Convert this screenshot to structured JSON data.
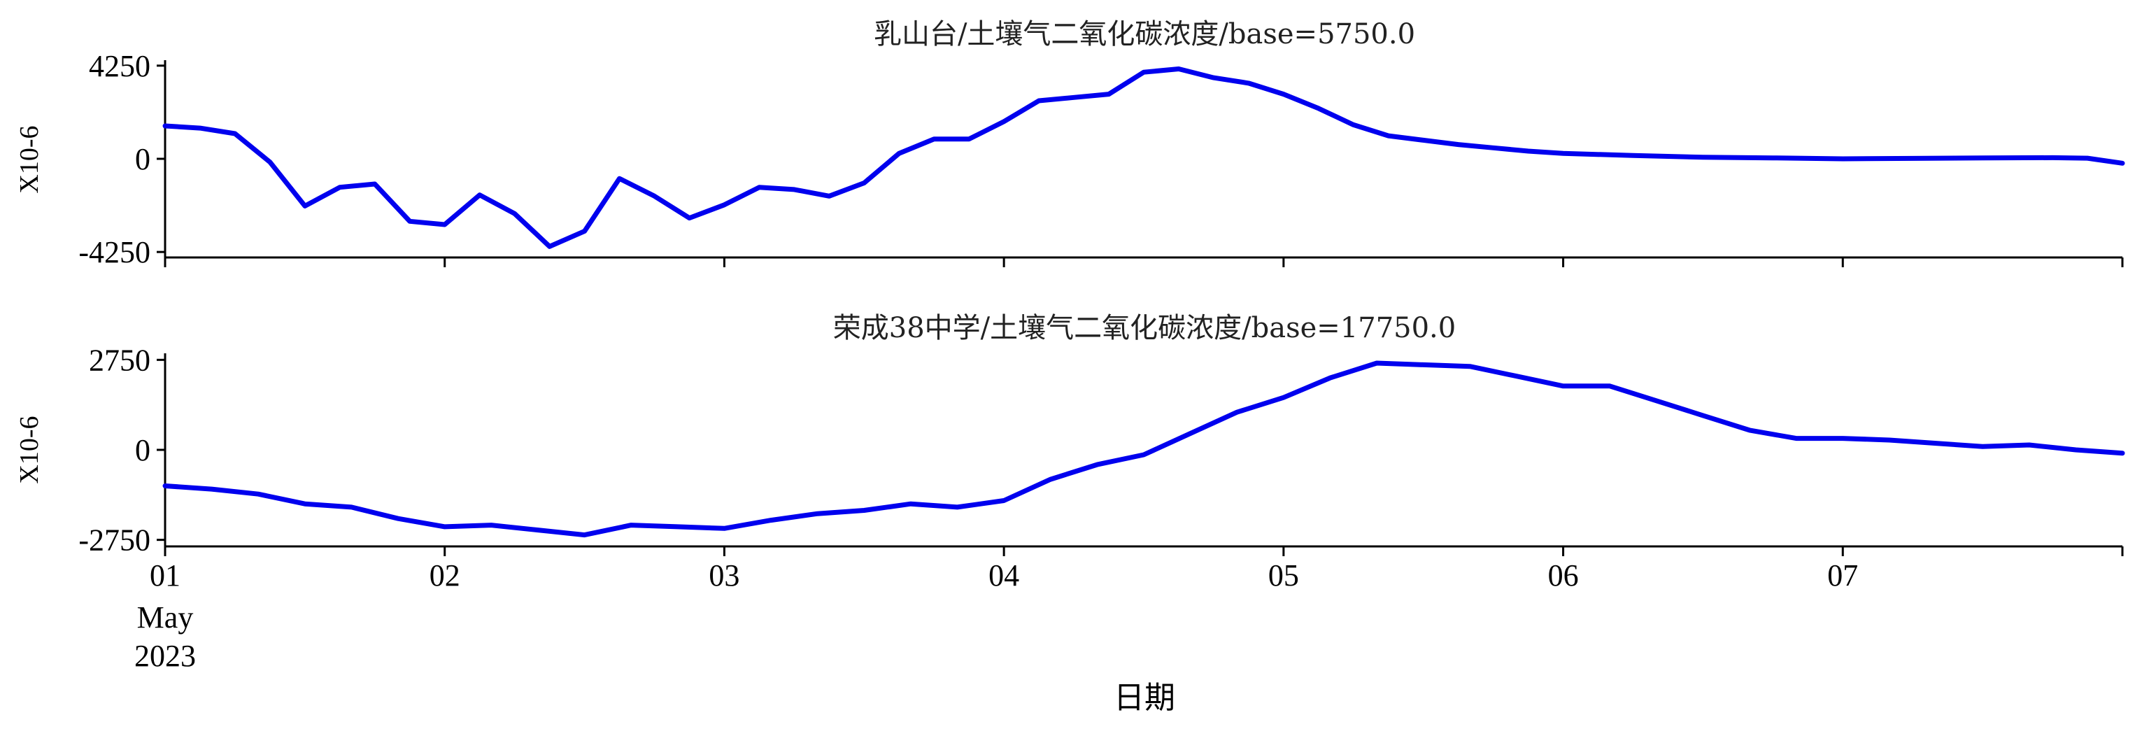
{
  "chart_data": [
    {
      "type": "line",
      "title": "乳山台/土壤气二氧化碳浓度/base=5750.0",
      "ylabel": "X10-6",
      "ylim": [
        -4500,
        4500
      ],
      "yticks": [
        4250,
        0,
        -4250
      ],
      "ytick_labels": [
        "4250",
        "0",
        "-4250"
      ],
      "xlim": [
        "2023-05-01 00:00",
        "2023-05-08 00:00"
      ],
      "color": "#0000ee",
      "series": [
        {
          "x": [
            "2023-05-01 00:00",
            "2023-05-01 03:00",
            "2023-05-01 06:00",
            "2023-05-01 09:00",
            "2023-05-01 12:00",
            "2023-05-01 15:00",
            "2023-05-01 18:00",
            "2023-05-01 21:00",
            "2023-05-02 00:00",
            "2023-05-02 03:00",
            "2023-05-02 06:00",
            "2023-05-02 09:00",
            "2023-05-02 12:00",
            "2023-05-02 15:00",
            "2023-05-02 18:00",
            "2023-05-02 21:00",
            "2023-05-03 00:00",
            "2023-05-03 03:00",
            "2023-05-03 06:00",
            "2023-05-03 09:00",
            "2023-05-03 12:00",
            "2023-05-03 15:00",
            "2023-05-03 18:00",
            "2023-05-03 21:00",
            "2023-05-04 00:00",
            "2023-05-04 03:00",
            "2023-05-04 06:00",
            "2023-05-04 09:00",
            "2023-05-04 12:00",
            "2023-05-04 15:00",
            "2023-05-04 18:00",
            "2023-05-04 21:00",
            "2023-05-05 00:00",
            "2023-05-05 03:00",
            "2023-05-05 06:00",
            "2023-05-05 09:00",
            "2023-05-05 12:00",
            "2023-05-05 15:00",
            "2023-05-05 18:00",
            "2023-05-05 21:00",
            "2023-05-06 00:00",
            "2023-05-06 06:00",
            "2023-05-06 12:00",
            "2023-05-06 18:00",
            "2023-05-07 00:00",
            "2023-05-07 06:00",
            "2023-05-07 12:00",
            "2023-05-07 18:00",
            "2023-05-07 21:00",
            "2023-05-08 00:00"
          ],
          "values": [
            1500,
            1400,
            1150,
            -150,
            -2150,
            -1300,
            -1150,
            -2850,
            -3000,
            -1650,
            -2500,
            -4000,
            -3300,
            -900,
            -1700,
            -2700,
            -2100,
            -1300,
            -1400,
            -1700,
            -1100,
            250,
            900,
            900,
            1700,
            2650,
            2800,
            2950,
            3950,
            4100,
            3700,
            3450,
            2950,
            2300,
            1550,
            1050,
            850,
            650,
            500,
            350,
            250,
            150,
            70,
            40,
            0,
            20,
            40,
            50,
            30,
            -200
          ]
        }
      ]
    },
    {
      "type": "line",
      "title": "荣成38中学/土壤气二氧化碳浓度/base=17750.0",
      "ylabel": "X10-6",
      "ylim": [
        -2950,
        2950
      ],
      "yticks": [
        2750,
        0,
        -2750
      ],
      "ytick_labels": [
        "2750",
        "0",
        "-2750"
      ],
      "xlim": [
        "2023-05-01 00:00",
        "2023-05-08 00:00"
      ],
      "color": "#0000ee",
      "series": [
        {
          "x": [
            "2023-05-01 00:00",
            "2023-05-01 04:00",
            "2023-05-01 08:00",
            "2023-05-01 12:00",
            "2023-05-01 16:00",
            "2023-05-01 20:00",
            "2023-05-02 00:00",
            "2023-05-02 04:00",
            "2023-05-02 08:00",
            "2023-05-02 12:00",
            "2023-05-02 16:00",
            "2023-05-02 20:00",
            "2023-05-03 00:00",
            "2023-05-03 04:00",
            "2023-05-03 08:00",
            "2023-05-03 12:00",
            "2023-05-03 16:00",
            "2023-05-03 20:00",
            "2023-05-04 00:00",
            "2023-05-04 04:00",
            "2023-05-04 08:00",
            "2023-05-04 12:00",
            "2023-05-04 16:00",
            "2023-05-04 20:00",
            "2023-05-05 00:00",
            "2023-05-05 04:00",
            "2023-05-05 08:00",
            "2023-05-05 12:00",
            "2023-05-05 16:00",
            "2023-05-05 20:00",
            "2023-05-06 00:00",
            "2023-05-06 04:00",
            "2023-05-06 08:00",
            "2023-05-06 12:00",
            "2023-05-06 16:00",
            "2023-05-06 20:00",
            "2023-05-07 00:00",
            "2023-05-07 04:00",
            "2023-05-07 08:00",
            "2023-05-07 12:00",
            "2023-05-07 16:00",
            "2023-05-07 20:00",
            "2023-05-08 00:00"
          ],
          "values": [
            -1100,
            -1200,
            -1350,
            -1650,
            -1750,
            -2100,
            -2350,
            -2300,
            -2450,
            -2600,
            -2300,
            -2350,
            -2400,
            -2150,
            -1950,
            -1850,
            -1650,
            -1750,
            -1550,
            -900,
            -450,
            -150,
            500,
            1150,
            1600,
            2200,
            2650,
            2600,
            2550,
            2250,
            1950,
            1950,
            1500,
            1050,
            600,
            350,
            350,
            300,
            200,
            100,
            150,
            0,
            -100
          ]
        }
      ]
    }
  ],
  "x_tick_labels": [
    "01",
    "02",
    "03",
    "04",
    "05",
    "06",
    "07"
  ],
  "x_date_line1": "May",
  "x_date_line2": "2023",
  "xlabel": "日期"
}
